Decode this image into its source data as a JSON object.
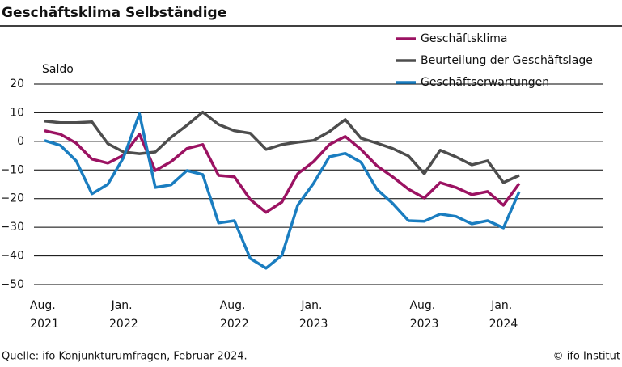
{
  "chart_data": {
    "type": "line",
    "title": "Geschäftsklima Selbständige",
    "y_label": "Saldo",
    "source": "Quelle: ifo Konjunkturumfragen, Februar 2024.",
    "copyright": "© ifo Institut",
    "categories": [
      "Aug. 2021",
      null,
      null,
      null,
      null,
      "Jan. 2022",
      null,
      null,
      null,
      null,
      null,
      null,
      "Aug. 2022",
      null,
      null,
      null,
      null,
      "Jan. 2023",
      null,
      null,
      null,
      null,
      null,
      null,
      "Aug. 2023",
      null,
      null,
      null,
      null,
      "Jan. 2024",
      null
    ],
    "ylim": [
      -50,
      20
    ],
    "yticks": [
      {
        "value": -50,
        "label": "−50"
      },
      {
        "value": -40,
        "label": "−40"
      },
      {
        "value": -30,
        "label": "−30"
      },
      {
        "value": -20,
        "label": "−20"
      },
      {
        "value": -10,
        "label": "−10"
      },
      0,
      10,
      20
    ],
    "grid": true,
    "legend": "top-right",
    "series": [
      {
        "name": "Geschäftsklima",
        "color": "#9b1262",
        "values": [
          3.7,
          2.5,
          -0.6,
          -6.2,
          -7.6,
          -4.8,
          2.5,
          -10.2,
          -7.1,
          -2.5,
          -1.1,
          -11.9,
          -12.4,
          -20.3,
          -24.8,
          -21.2,
          -11.3,
          -7.1,
          -1.1,
          1.7,
          -2.8,
          -8.5,
          -12.4,
          -16.7,
          -19.8,
          -14.4,
          -16.1,
          -18.6,
          -17.5,
          -22.3,
          -14.7
        ]
      },
      {
        "name": "Beurteilung der Geschäftslage",
        "color": "#4d4d4d",
        "values": [
          7.1,
          6.5,
          6.5,
          6.8,
          -0.8,
          -3.7,
          -4.3,
          -3.7,
          1.4,
          5.6,
          10.2,
          5.9,
          3.7,
          2.8,
          -2.8,
          -1.1,
          -0.3,
          0.3,
          3.4,
          7.6,
          1.1,
          -0.6,
          -2.5,
          -5.1,
          -11.3,
          -3.1,
          -5.4,
          -8.2,
          -6.8,
          -14.4,
          -11.9
        ]
      },
      {
        "name": "Geschäftserwartungen",
        "color": "#1a7dc0",
        "values": [
          0.3,
          -1.4,
          -6.8,
          -18.3,
          -15.0,
          -5.6,
          9.6,
          -16.1,
          -15.2,
          -10.2,
          -11.6,
          -28.5,
          -27.7,
          -40.9,
          -44.3,
          -39.8,
          -22.3,
          -14.7,
          -5.4,
          -4.2,
          -7.3,
          -16.7,
          -21.7,
          -27.7,
          -27.9,
          -25.4,
          -26.2,
          -28.8,
          -27.7,
          -30.2,
          -17.5
        ]
      }
    ]
  }
}
